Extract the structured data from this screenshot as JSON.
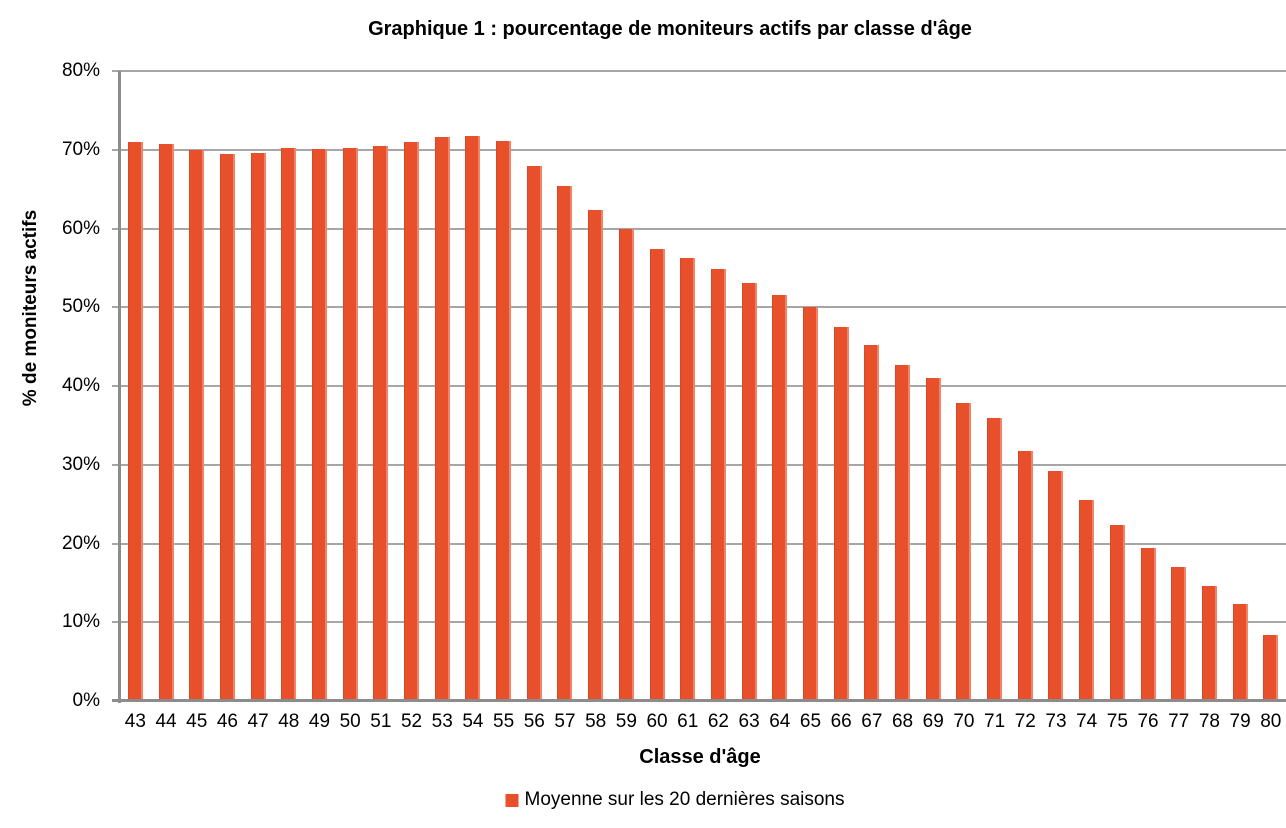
{
  "chart_data": {
    "type": "bar",
    "title": "Graphique 1 : pourcentage de moniteurs actifs par classe d'âge",
    "xlabel": "Classe d'âge",
    "ylabel": "% de moniteurs actifs",
    "categories": [
      "43",
      "44",
      "45",
      "46",
      "47",
      "48",
      "49",
      "50",
      "51",
      "52",
      "53",
      "54",
      "55",
      "56",
      "57",
      "58",
      "59",
      "60",
      "61",
      "62",
      "63",
      "64",
      "65",
      "66",
      "67",
      "68",
      "69",
      "70",
      "71",
      "72",
      "73",
      "74",
      "75",
      "76",
      "77",
      "78",
      "79",
      "80"
    ],
    "series": [
      {
        "name": "Moyenne sur les 20 dernières saisons",
        "values": [
          71.0,
          70.7,
          70.0,
          69.5,
          69.6,
          70.2,
          70.1,
          70.2,
          70.5,
          71.0,
          71.6,
          71.7,
          71.1,
          68.0,
          65.4,
          62.3,
          59.9,
          57.4,
          56.2,
          54.9,
          53.1,
          51.5,
          50.0,
          47.5,
          45.2,
          42.7,
          41.0,
          37.8,
          35.9,
          31.7,
          29.2,
          25.5,
          22.4,
          19.4,
          17.0,
          14.6,
          12.3,
          8.4
        ]
      }
    ],
    "ylim": [
      0,
      80
    ],
    "ytick_step": 10,
    "ytick_labels": [
      "0%",
      "10%",
      "20%",
      "30%",
      "40%",
      "50%",
      "60%",
      "70%",
      "80%"
    ],
    "grid": true,
    "legend_position": "bottom",
    "colors": {
      "bar": "#E8502B",
      "gridline": "#A6A6A6",
      "axis": "#8C8C8C",
      "text": "#000000"
    }
  }
}
